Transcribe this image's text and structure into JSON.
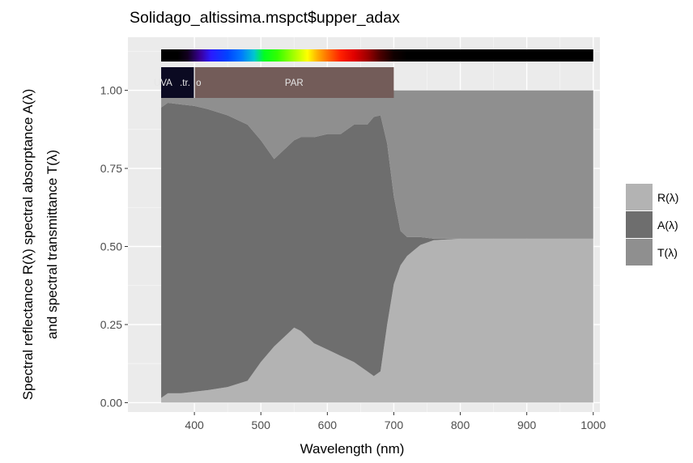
{
  "chart_data": {
    "type": "area",
    "title": "Solidago_altissima.mspct$upper_adax",
    "xlabel": "Wavelength (nm)",
    "ylabel_line1": "Spectral  reflectance R(λ)  spectral  absorptance  A(λ)",
    "ylabel_line2": "and  spectral  transmittance T(λ)",
    "xlim": [
      300,
      1010
    ],
    "ylim": [
      -0.03,
      1.17
    ],
    "x_ticks": [
      400,
      500,
      600,
      700,
      800,
      900,
      1000
    ],
    "x_tick_labels": [
      "400",
      "500",
      "600",
      "700",
      "800",
      "900",
      "1000"
    ],
    "y_ticks": [
      0,
      0.25,
      0.5,
      0.75,
      1.0
    ],
    "y_tick_labels": [
      "0.00",
      "0.25",
      "0.50",
      "0.75",
      "1.00"
    ],
    "grid": true,
    "legend_position": "right",
    "wavelength": [
      350,
      360,
      380,
      400,
      420,
      450,
      480,
      500,
      520,
      540,
      550,
      560,
      580,
      600,
      620,
      640,
      660,
      670,
      680,
      690,
      700,
      710,
      720,
      740,
      760,
      800,
      900,
      950,
      970,
      990,
      1000
    ],
    "series": [
      {
        "name": "R(λ)",
        "color": "#b3b3b3",
        "values": [
          0.015,
          0.03,
          0.03,
          0.035,
          0.04,
          0.05,
          0.07,
          0.13,
          0.18,
          0.22,
          0.24,
          0.23,
          0.19,
          0.17,
          0.15,
          0.13,
          0.1,
          0.085,
          0.1,
          0.25,
          0.38,
          0.44,
          0.47,
          0.505,
          0.52,
          0.525,
          0.525,
          0.525,
          0.525,
          0.525,
          0.525
        ]
      },
      {
        "name": "A(λ)",
        "color": "#6e6e6e",
        "values": [
          0.93,
          0.93,
          0.925,
          0.915,
          0.9,
          0.87,
          0.82,
          0.71,
          0.6,
          0.6,
          0.6,
          0.62,
          0.66,
          0.69,
          0.71,
          0.76,
          0.79,
          0.83,
          0.82,
          0.58,
          0.28,
          0.11,
          0.06,
          0.025,
          0.005,
          0.0,
          0.0,
          0.0,
          0.0,
          0.0,
          0.0
        ]
      },
      {
        "name": "T(λ)",
        "color": "#8f8f8f",
        "values": [
          0.055,
          0.04,
          0.045,
          0.05,
          0.06,
          0.08,
          0.11,
          0.16,
          0.22,
          0.18,
          0.16,
          0.15,
          0.15,
          0.14,
          0.14,
          0.11,
          0.11,
          0.085,
          0.08,
          0.17,
          0.34,
          0.45,
          0.47,
          0.47,
          0.475,
          0.475,
          0.475,
          0.475,
          0.475,
          0.475,
          0.475
        ]
      }
    ],
    "wavebands": [
      {
        "label": "UVA",
        "from": 350,
        "to": 400,
        "color": "#0b0a22"
      },
      {
        "label": ".tr.",
        "from": 400,
        "to": 400,
        "color": "#0b0a22"
      },
      {
        "label": "o",
        "from": 400,
        "to": 400,
        "color": "#0b0a22"
      },
      {
        "label": "PAR",
        "from": 400,
        "to": 700,
        "color": "#735c59"
      }
    ],
    "color_bar": {
      "from": 350,
      "to": 1000
    }
  }
}
